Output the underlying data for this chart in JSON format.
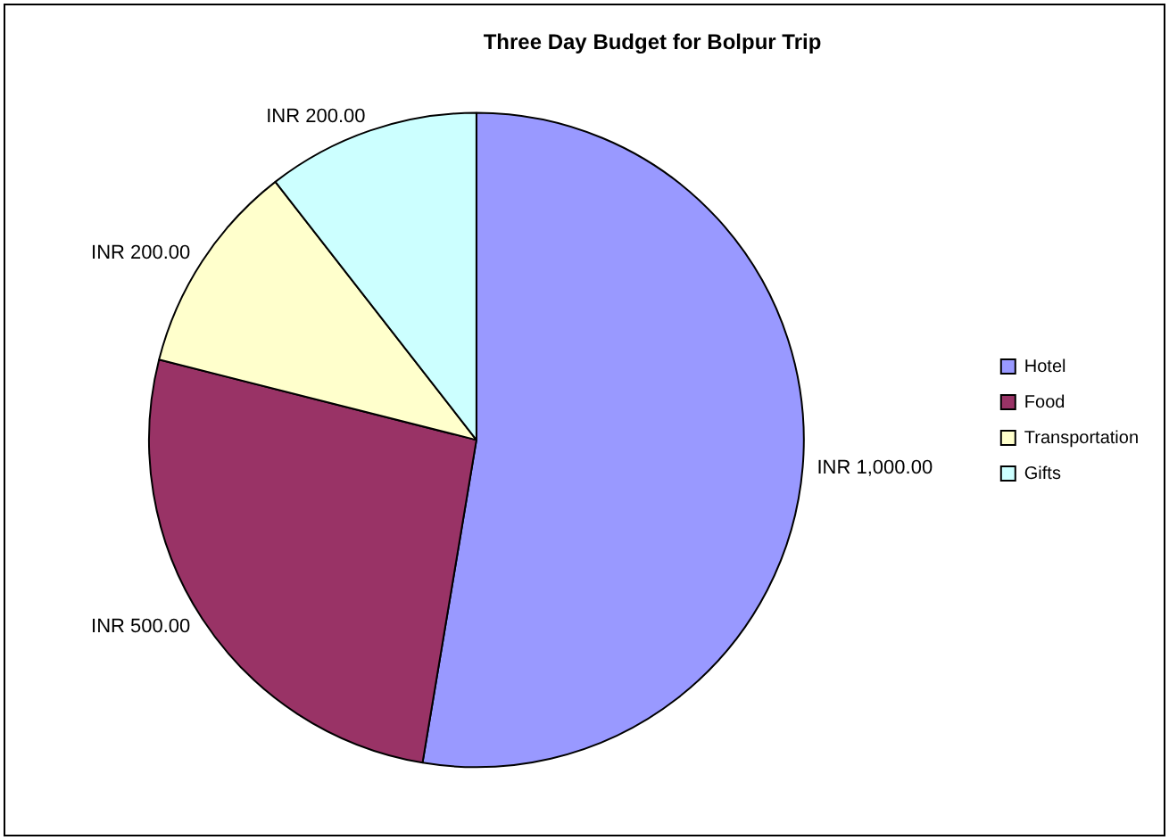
{
  "chart_data": {
    "type": "pie",
    "title": "Three Day Budget for Bolpur Trip",
    "categories": [
      "Hotel",
      "Food",
      "Transportation",
      "Gifts"
    ],
    "values": [
      1000,
      500,
      200,
      200
    ],
    "colors": [
      "#9999ff",
      "#993366",
      "#ffffcc",
      "#ccffff"
    ],
    "value_labels": [
      "INR 1,000.00",
      "INR 500.00",
      "INR 200.00",
      "INR 200.00"
    ],
    "legend": "right"
  }
}
